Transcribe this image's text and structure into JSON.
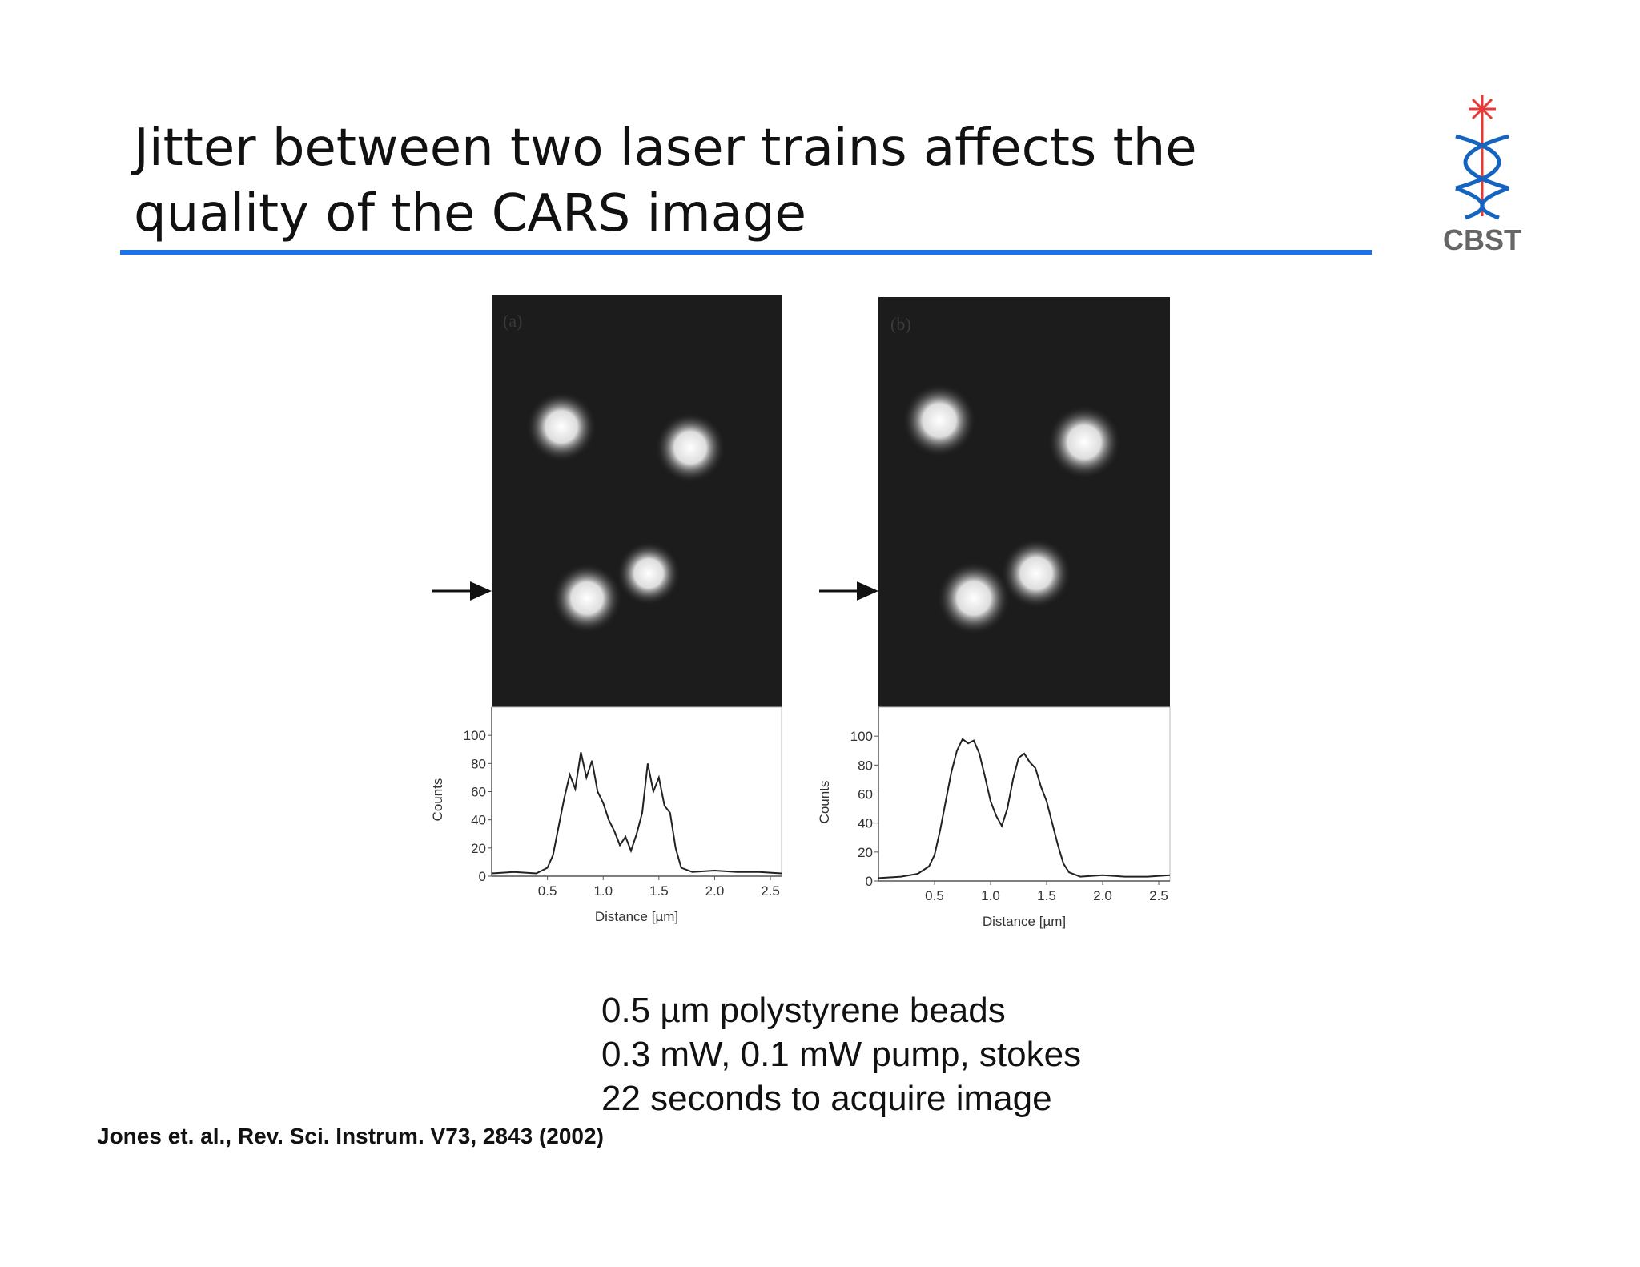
{
  "header": {
    "title": [
      "Jitter between two laser trains affects the",
      "quality of the CARS image"
    ],
    "logo": "CBST"
  },
  "figure": {
    "panels": [
      {
        "label": "(a)",
        "chart_data": {
          "type": "line",
          "ylabel": "Counts",
          "xlabel": "Distance [µm]",
          "xlim": [
            0,
            2.6
          ],
          "ylim": [
            0,
            120
          ],
          "xticks": [
            0.5,
            {
              "value": 1,
              "label": "1.0"
            },
            1.5,
            {
              "value": 2,
              "label": "2.0"
            },
            2.5
          ],
          "yticks": [
            0,
            20,
            40,
            60,
            80,
            100
          ],
          "series": [
            {
              "color": "#222222",
              "x": [
                0,
                0.2,
                0.4,
                0.5,
                0.55,
                0.6,
                0.65,
                0.7,
                0.75,
                0.8,
                0.85,
                0.9,
                0.95,
                1.0,
                1.05,
                1.1,
                1.15,
                1.2,
                1.25,
                1.3,
                1.35,
                1.4,
                1.45,
                1.5,
                1.55,
                1.6,
                1.65,
                1.7,
                1.8,
                2.0,
                2.2,
                2.4,
                2.6
              ],
              "values": [
                2,
                3,
                2,
                6,
                15,
                35,
                55,
                72,
                62,
                88,
                70,
                82,
                60,
                52,
                40,
                32,
                22,
                28,
                18,
                30,
                45,
                80,
                60,
                70,
                50,
                45,
                20,
                6,
                3,
                4,
                3,
                3,
                2
              ]
            }
          ]
        }
      },
      {
        "label": "(b)",
        "chart_data": {
          "type": "line",
          "ylabel": "Counts",
          "xlabel": "Distance [µm]",
          "xlim": [
            0,
            2.6
          ],
          "ylim": [
            0,
            120
          ],
          "xticks": [
            0.5,
            {
              "value": 1,
              "label": "1.0"
            },
            1.5,
            {
              "value": 2,
              "label": "2.0"
            },
            2.5
          ],
          "yticks": [
            0,
            20,
            40,
            60,
            80,
            100
          ],
          "series": [
            {
              "color": "#222222",
              "x": [
                0,
                0.2,
                0.35,
                0.45,
                0.5,
                0.55,
                0.6,
                0.65,
                0.7,
                0.75,
                0.8,
                0.85,
                0.9,
                0.95,
                1.0,
                1.05,
                1.1,
                1.15,
                1.2,
                1.25,
                1.3,
                1.35,
                1.4,
                1.45,
                1.5,
                1.55,
                1.6,
                1.65,
                1.7,
                1.8,
                2.0,
                2.2,
                2.4,
                2.6
              ],
              "values": [
                2,
                3,
                5,
                10,
                18,
                35,
                55,
                75,
                90,
                98,
                95,
                97,
                88,
                72,
                55,
                45,
                38,
                50,
                70,
                85,
                88,
                82,
                78,
                65,
                55,
                40,
                25,
                12,
                6,
                3,
                4,
                3,
                3,
                4
              ]
            }
          ]
        }
      }
    ]
  },
  "notes": [
    "0.5 µm polystyrene beads",
    "0.3 mW, 0.1 mW pump, stokes",
    "22 seconds to acquire image"
  ],
  "citation": "Jones et. al., Rev. Sci. Instrum. V73, 2843 (2002)"
}
